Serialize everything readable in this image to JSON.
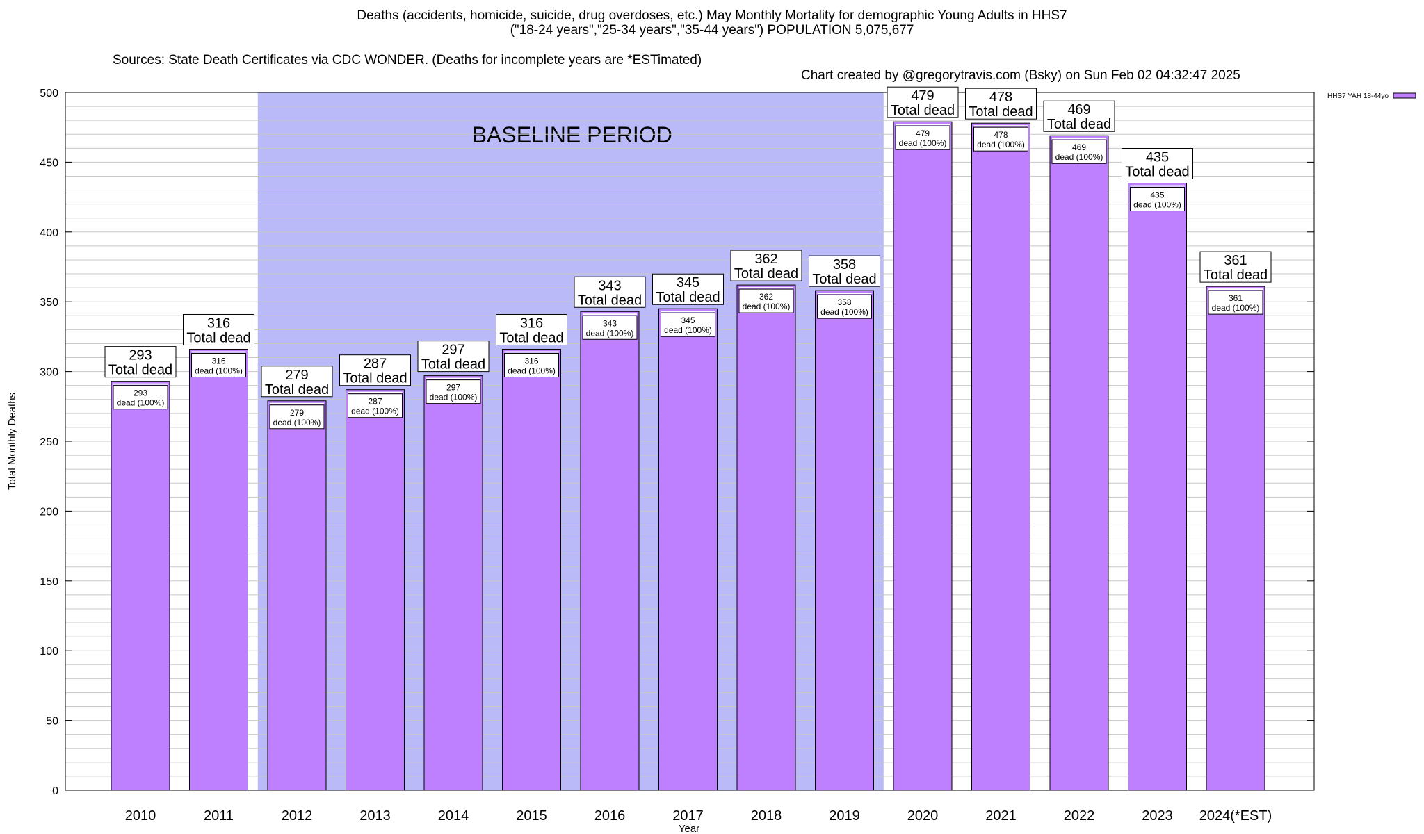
{
  "title": {
    "line1": "Deaths (accidents, homicide, suicide, drug overdoses, etc.) May Monthly Mortality for demographic Young Adults in HHS7",
    "line2": "(\"18-24 years\",\"25-34 years\",\"35-44 years\") POPULATION 5,075,677",
    "sources": "Sources: State Death Certificates via CDC WONDER. (Deaths for incomplete years are *ESTimated)",
    "creator": "Chart created by @gregorytravis.com (Bsky) on Sun Feb 02 04:32:47 2025"
  },
  "chart_data": {
    "type": "bar",
    "xlabel": "Year",
    "ylabel": "Total Monthly Deaths",
    "ylim": [
      0,
      500
    ],
    "yticks": [
      0,
      50,
      100,
      150,
      200,
      250,
      300,
      350,
      400,
      450,
      500
    ],
    "minor_grid_step": 10,
    "grid": true,
    "legend": {
      "placement": "top-right",
      "label": "HHS7 YAH 18-44yo"
    },
    "categories": [
      "2010",
      "2011",
      "2012",
      "2013",
      "2014",
      "2015",
      "2016",
      "2017",
      "2018",
      "2019",
      "2020",
      "2021",
      "2022",
      "2023",
      "2024(*EST)"
    ],
    "series": [
      {
        "name": "HHS7 YAH 18-44yo",
        "values": [
          293,
          316,
          279,
          287,
          297,
          316,
          343,
          345,
          362,
          358,
          479,
          478,
          469,
          435,
          361
        ]
      }
    ],
    "total_label_suffix": "Total dead",
    "inner_label_suffix": "dead (100%)",
    "baseline": {
      "label": "BASELINE PERIOD",
      "start": "2012",
      "end": "2019"
    },
    "colors": {
      "bar": "#bf80ff",
      "bar_top": "#ffffff",
      "baseline_band": "#babaf8",
      "grid": "#c8c8c8",
      "axis": "#000000"
    }
  }
}
